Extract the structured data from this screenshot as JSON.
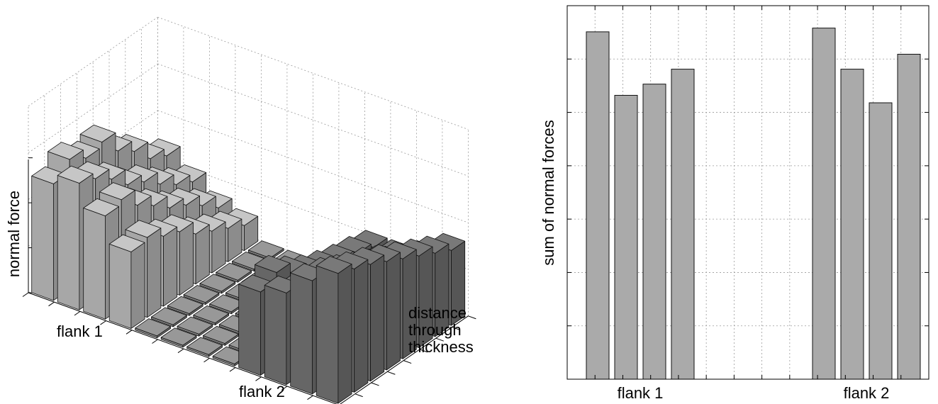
{
  "chart_data": [
    {
      "type": "bar",
      "subtype": "3d-bar",
      "zlabel": "normal force",
      "xlabel": "distance through thickness",
      "flank_labels": [
        "flank 1",
        "flank 2"
      ],
      "grid": true,
      "series": [
        {
          "name": "flank 1",
          "color": "#b4b4b4",
          "values": [
            [
              0.7,
              0.78,
              0.72,
              0.75,
              0.63,
              0.56,
              0.45,
              0.4
            ],
            [
              0.76,
              0.72,
              0.65,
              0.55,
              0.5,
              0.42,
              0.35,
              0.3
            ],
            [
              0.62,
              0.65,
              0.55,
              0.48,
              0.4,
              0.35,
              0.28,
              0.2
            ],
            [
              0.46,
              0.48,
              0.42,
              0.38,
              0.3,
              0.25,
              0.2,
              0.15
            ]
          ]
        },
        {
          "name": "flank 2",
          "color": "#6e6e6e",
          "values": [
            [
              0.5,
              0.55,
              0.48,
              0.42,
              0.38,
              0.35,
              0.33,
              0.3
            ],
            [
              0.55,
              0.5,
              0.45,
              0.42,
              0.38,
              0.35,
              0.33,
              0.3
            ],
            [
              0.68,
              0.65,
              0.6,
              0.55,
              0.5,
              0.45,
              0.4,
              0.35
            ],
            [
              0.78,
              0.74,
              0.7,
              0.65,
              0.6,
              0.55,
              0.5,
              0.45
            ]
          ]
        }
      ]
    },
    {
      "type": "bar",
      "ylabel": "sum of normal forces",
      "categories": [
        "flank 1",
        "flank 2"
      ],
      "grid": true,
      "color": "#aaaaaa",
      "groups": [
        {
          "label": "flank 1",
          "values": [
            0.93,
            0.76,
            0.79,
            0.83
          ]
        },
        {
          "label": "flank 2",
          "values": [
            0.94,
            0.83,
            0.74,
            0.87
          ]
        }
      ]
    }
  ]
}
